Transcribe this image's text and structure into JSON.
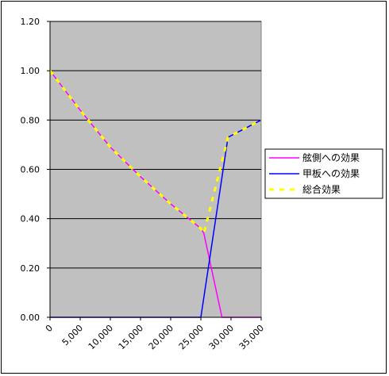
{
  "chart_data": {
    "type": "line",
    "title": "",
    "xlabel": "",
    "ylabel": "",
    "xlim": [
      0,
      35000
    ],
    "ylim": [
      0,
      1.2
    ],
    "x_ticks": [
      0,
      5000,
      10000,
      15000,
      20000,
      25000,
      30000,
      35000
    ],
    "x_tick_labels": [
      "0",
      "5,000",
      "10,000",
      "15,000",
      "20,000",
      "25,000",
      "30,000",
      "35,000"
    ],
    "y_ticks": [
      0,
      0.2,
      0.4,
      0.6,
      0.8,
      1.0,
      1.2
    ],
    "y_tick_labels": [
      "0.00",
      "0.20",
      "0.40",
      "0.60",
      "0.80",
      "1.00",
      "1.20"
    ],
    "grid": "horizontal",
    "plot_background": "#c0c0c0",
    "legend_position": "right",
    "series": [
      {
        "name": "舷側への効果",
        "color": "#ff00ff",
        "style": "solid",
        "points": [
          [
            0,
            1.0
          ],
          [
            5000,
            0.84
          ],
          [
            10000,
            0.69
          ],
          [
            15000,
            0.57
          ],
          [
            20000,
            0.46
          ],
          [
            25000,
            0.36
          ],
          [
            25500,
            0.34
          ],
          [
            28500,
            0.0
          ],
          [
            35000,
            0.0
          ]
        ]
      },
      {
        "name": "甲板への効果",
        "color": "#0000ff",
        "style": "solid",
        "points": [
          [
            0,
            0.0
          ],
          [
            25000,
            0.0
          ],
          [
            29500,
            0.73
          ],
          [
            35000,
            0.8
          ]
        ]
      },
      {
        "name": "総合効果",
        "color": "#ffff00",
        "style": "dashed",
        "points": [
          [
            0,
            1.0
          ],
          [
            5000,
            0.84
          ],
          [
            10000,
            0.69
          ],
          [
            15000,
            0.57
          ],
          [
            20000,
            0.46
          ],
          [
            25000,
            0.36
          ],
          [
            25500,
            0.34
          ],
          [
            29500,
            0.73
          ],
          [
            35000,
            0.8
          ]
        ]
      }
    ]
  }
}
